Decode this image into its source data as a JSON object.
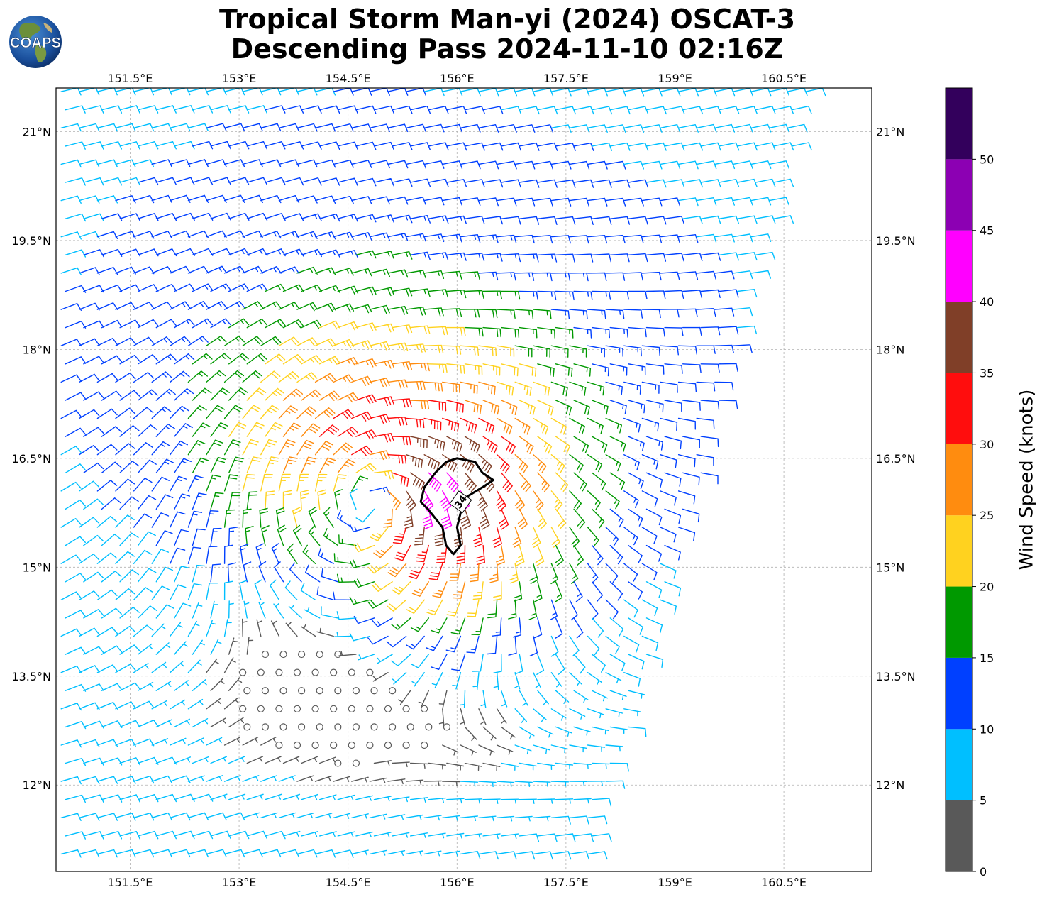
{
  "title": {
    "line1": "Tropical Storm Man-yi (2024) OSCAT-3",
    "line2": "Descending Pass 2024-11-10 02:16Z"
  },
  "logo": {
    "text": "COAPS",
    "icon": "earth-globe-logo"
  },
  "map": {
    "lon_labels": [
      "151.5°E",
      "153°E",
      "154.5°E",
      "156°E",
      "157.5°E",
      "159°E",
      "160.5°E"
    ],
    "lat_labels": [
      "21°N",
      "19.5°N",
      "18°N",
      "16.5°N",
      "15°N",
      "13.5°N",
      "12°N"
    ],
    "lon_values": [
      151.5,
      153.0,
      154.5,
      156.0,
      157.5,
      159.0,
      160.5
    ],
    "lat_values": [
      21.0,
      19.5,
      18.0,
      16.5,
      15.0,
      13.5,
      12.0
    ],
    "extent": {
      "lon_min": 150.48,
      "lon_max": 161.71,
      "lat_min": 10.81,
      "lat_max": 21.6
    },
    "grid": true,
    "storm_center": {
      "lon": 154.8,
      "lat": 16.0
    },
    "contour_label": "34",
    "contour_34kt": [
      [
        156.0,
        16.5
      ],
      [
        156.25,
        16.45
      ],
      [
        156.35,
        16.3
      ],
      [
        156.5,
        16.2
      ],
      [
        156.35,
        16.1
      ],
      [
        156.1,
        15.95
      ],
      [
        156.05,
        15.75
      ],
      [
        156.0,
        15.55
      ],
      [
        156.05,
        15.3
      ],
      [
        155.95,
        15.18
      ],
      [
        155.85,
        15.3
      ],
      [
        155.8,
        15.55
      ],
      [
        155.6,
        15.8
      ],
      [
        155.5,
        15.9
      ],
      [
        155.55,
        16.1
      ],
      [
        155.7,
        16.3
      ],
      [
        155.85,
        16.45
      ]
    ]
  },
  "colorbar": {
    "label": "Wind Speed (knots)",
    "ticks": [
      "0",
      "5",
      "10",
      "15",
      "20",
      "25",
      "30",
      "35",
      "40",
      "45",
      "50"
    ],
    "bins": [
      {
        "min": 0,
        "max": 5,
        "color": "#595959"
      },
      {
        "min": 5,
        "max": 10,
        "color": "#00bfff"
      },
      {
        "min": 10,
        "max": 15,
        "color": "#0040ff"
      },
      {
        "min": 15,
        "max": 20,
        "color": "#009900"
      },
      {
        "min": 20,
        "max": 25,
        "color": "#ffd21f"
      },
      {
        "min": 25,
        "max": 30,
        "color": "#ff8c0f"
      },
      {
        "min": 30,
        "max": 35,
        "color": "#ff0d0d"
      },
      {
        "min": 35,
        "max": 40,
        "color": "#803f28"
      },
      {
        "min": 40,
        "max": 45,
        "color": "#ff00ff"
      },
      {
        "min": 45,
        "max": 50,
        "color": "#8c00b3"
      },
      {
        "min": 50,
        "max": 55,
        "color": "#33005c"
      }
    ]
  }
}
